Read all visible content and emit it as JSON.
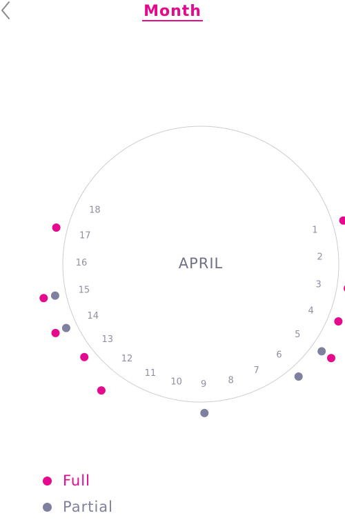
{
  "header": {
    "back_icon": "chevron-left-icon",
    "title": "Month"
  },
  "month_label": "APRIL",
  "colors": {
    "accent": "#E5098E",
    "full": "#E5098E",
    "partial": "#7F7F9F",
    "day_text": "#8F8FA3",
    "month_text": "#6F6F88",
    "circle": "#CCCCCC",
    "back_icon": "#8A8A8A"
  },
  "days": [
    "1",
    "2",
    "3",
    "4",
    "5",
    "6",
    "7",
    "8",
    "9",
    "10",
    "11",
    "12",
    "13",
    "14",
    "15",
    "16",
    "17",
    "18"
  ],
  "markers": [
    {
      "day": "1",
      "status": "full",
      "ring": 1
    },
    {
      "day": "1",
      "status": "full",
      "ring": 2
    },
    {
      "day": "2",
      "status": "full",
      "ring": 1
    },
    {
      "day": "3",
      "status": "full",
      "ring": 1
    },
    {
      "day": "3",
      "status": "full",
      "ring": 2
    },
    {
      "day": "4",
      "status": "full",
      "ring": 1
    },
    {
      "day": "5",
      "status": "partial",
      "ring": 1
    },
    {
      "day": "5",
      "status": "full",
      "ring": 2
    },
    {
      "day": "6",
      "status": "partial",
      "ring": 1
    },
    {
      "day": "9",
      "status": "partial",
      "ring": 1
    },
    {
      "day": "12",
      "status": "full",
      "ring": 2
    },
    {
      "day": "13",
      "status": "full",
      "ring": 1
    },
    {
      "day": "14",
      "status": "partial",
      "ring": 1
    },
    {
      "day": "14",
      "status": "full",
      "ring": 2
    },
    {
      "day": "15",
      "status": "partial",
      "ring": 1
    },
    {
      "day": "15",
      "status": "full",
      "ring": 2
    },
    {
      "day": "17",
      "status": "full",
      "ring": 1
    }
  ],
  "legend": [
    {
      "label": "Full",
      "status": "full"
    },
    {
      "label": "Partial",
      "status": "partial"
    }
  ]
}
